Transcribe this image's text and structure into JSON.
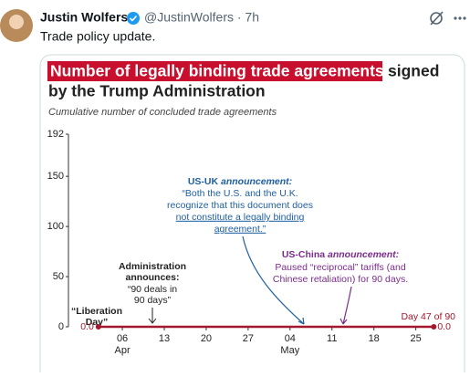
{
  "tweet": {
    "name": "Justin Wolfers",
    "handle": "@JustinWolfers · 7h",
    "text": "Trade policy update."
  },
  "chart_data": {
    "type": "line",
    "title": [
      "Number of legally binding trade agreements",
      "signed",
      "by the Trump Administration"
    ],
    "subtitle": "Cumulative number of concluded trade agreements",
    "x": [
      "04-02",
      "05-28"
    ],
    "series": [
      {
        "color": "#a3182c",
        "values": [
          0,
          0
        ],
        "value_labels": [
          "0.0",
          "0.0"
        ]
      }
    ],
    "xlim": [
      "03-28",
      "05-31"
    ],
    "xticks": [
      {
        "value": "04-06",
        "label": "06"
      },
      {
        "value": "04-13",
        "label": "13"
      },
      {
        "value": "04-20",
        "label": "20"
      },
      {
        "value": "04-27",
        "label": "27"
      },
      {
        "value": "05-04",
        "label": "04"
      },
      {
        "value": "05-11",
        "label": "11"
      },
      {
        "value": "05-18",
        "label": "18"
      },
      {
        "value": "05-25",
        "label": "25"
      }
    ],
    "month_labels": [
      {
        "value": "04-06",
        "label": "Apr"
      },
      {
        "value": "05-04",
        "label": "May"
      }
    ],
    "ylim": [
      0,
      192
    ],
    "yticks": [
      0,
      50,
      100,
      150,
      192
    ],
    "annotations": {
      "us_uk": {
        "head": "US-UK ",
        "head_italic": "announcement:",
        "lines": [
          "“Both the U.S. and the U.K.",
          "recognize that this document does",
          "not constitute a legally binding",
          "agreement.”"
        ]
      },
      "us_china": {
        "head": "US-China ",
        "head_italic": "announcement:",
        "lines": [
          "Paused “reciprocal” tariffs (and",
          "Chinese retaliation) for 90 days."
        ]
      },
      "admin": {
        "lines": [
          "Administration",
          "announces:"
        ],
        "quote": [
          "“90 deals in",
          "90 days”"
        ]
      },
      "liberation": [
        "“Liberation",
        "Day”"
      ],
      "day_count": "Day 47 of 90"
    }
  }
}
